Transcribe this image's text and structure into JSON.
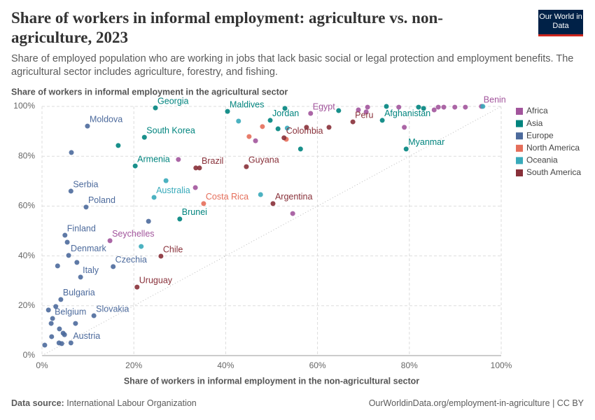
{
  "chart_data": {
    "type": "scatter",
    "title": "Share of workers in informal employment: agriculture vs. non-agriculture, 2023",
    "subtitle": "Share of employed population who are working in jobs that lack basic social or legal protection and employment benefits. The agricultural sector includes agriculture, forestry, and fishing.",
    "logo": "Our World in Data",
    "y_label": "Share of workers in informal employment in the agricultural sector",
    "x_label": "Share of workers in informal employment in the non-agricultural sector",
    "source_label": "Data source:",
    "source": "International Labour Organization",
    "url": "OurWorldinData.org/employment-in-agriculture | CC BY",
    "xlim": [
      0,
      100
    ],
    "ylim": [
      0,
      100
    ],
    "xticks": [
      {
        "value": 0,
        "label": "0%"
      },
      {
        "value": 20,
        "label": "20%"
      },
      {
        "value": 40,
        "label": "40%"
      },
      {
        "value": 60,
        "label": "60%"
      },
      {
        "value": 80,
        "label": "80%"
      },
      {
        "value": 100,
        "label": "100%"
      }
    ],
    "yticks": [
      {
        "value": 0,
        "label": "0%"
      },
      {
        "value": 20,
        "label": "20%"
      },
      {
        "value": 40,
        "label": "40%"
      },
      {
        "value": 60,
        "label": "60%"
      },
      {
        "value": 80,
        "label": "80%"
      },
      {
        "value": 100,
        "label": "100%"
      }
    ],
    "grid": true,
    "legend": "right",
    "series": [
      {
        "name": "Africa",
        "color": "#a2559c",
        "x": [
          58.5,
          95.7,
          14.8,
          29.7,
          33.4,
          54.6,
          78.9,
          46.5,
          68.9,
          70.9,
          77.7,
          85.4,
          87.5,
          89.9,
          92.2,
          70.6,
          86.3
        ],
        "values": [
          97.2,
          100,
          46.1,
          78.7,
          67.4,
          57.0,
          91.6,
          86.2,
          98.6,
          99.7,
          99.7,
          98.6,
          99.7,
          99.7,
          99.7,
          97.8,
          99.7
        ],
        "labels": [
          "Egypt",
          "Benin",
          "Seychelles",
          null,
          null,
          null,
          null,
          null,
          null,
          null,
          null,
          null,
          null,
          null,
          null,
          null,
          null
        ]
      },
      {
        "name": "Asia",
        "color": "#00847e",
        "x": [
          24.7,
          22.3,
          20.3,
          30.0,
          40.4,
          49.7,
          79.3,
          74.1,
          16.6,
          52.9,
          64.6,
          56.3,
          51.4,
          75.0,
          82.0,
          83.1
        ],
        "values": [
          99.4,
          87.6,
          76.1,
          54.8,
          98.0,
          94.4,
          82.9,
          94.4,
          84.3,
          99.2,
          98.3,
          82.9,
          91.0,
          100,
          99.7,
          99.2
        ],
        "labels": [
          "Georgia",
          "South Korea",
          "Armenia",
          "Brunei",
          "Maldives",
          "Jordan",
          "Myanmar",
          "Afghanistan",
          null,
          null,
          null,
          null,
          null,
          null,
          null,
          null
        ]
      },
      {
        "name": "Europe",
        "color": "#4c6a9c",
        "x": [
          9.9,
          6.3,
          9.6,
          5.0,
          5.8,
          8.4,
          15.5,
          4.1,
          11.3,
          2.3,
          6.3,
          6.4,
          23.2,
          3.4,
          7.6,
          5.5,
          1.4,
          3.0,
          2.0,
          3.8,
          4.6,
          2.1,
          3.7,
          0.6,
          4.9,
          4.3,
          7.3
        ],
        "values": [
          92.1,
          66.0,
          59.6,
          48.3,
          40.2,
          31.5,
          35.7,
          22.5,
          16.0,
          14.9,
          5.1,
          81.5,
          53.9,
          36.0,
          37.4,
          45.5,
          18.3,
          19.7,
          12.9,
          10.7,
          9.0,
          7.6,
          5.1,
          4.2,
          8.4,
          4.8,
          12.9
        ],
        "labels": [
          "Moldova",
          "Serbia",
          "Poland",
          "Finland",
          "Denmark",
          "Italy",
          "Czechia",
          "Bulgaria",
          "Slovakia",
          "Belgium",
          "Austria",
          null,
          null,
          null,
          null,
          null,
          null,
          null,
          null,
          null,
          null,
          null,
          null,
          null,
          null,
          null,
          null
        ]
      },
      {
        "name": "North America",
        "color": "#e56e5a",
        "x": [
          35.2,
          45.1,
          48.0,
          53.2
        ],
        "values": [
          61.0,
          87.9,
          91.9,
          86.8
        ],
        "labels": [
          "Costa Rica",
          null,
          null,
          null
        ]
      },
      {
        "name": "Oceania",
        "color": "#38aaba",
        "x": [
          24.4,
          27.0,
          42.8,
          47.6,
          21.6,
          96.0,
          53.4
        ],
        "values": [
          63.5,
          70.2,
          94.1,
          64.6,
          43.8,
          100,
          91.3
        ],
        "labels": [
          "Australia",
          null,
          null,
          null,
          null,
          null,
          null
        ]
      },
      {
        "name": "South America",
        "color": "#883039",
        "x": [
          34.3,
          44.5,
          52.7,
          50.3,
          67.7,
          25.9,
          20.7,
          57.6,
          62.5,
          33.5
        ],
        "values": [
          75.3,
          75.8,
          87.4,
          61.0,
          93.8,
          39.9,
          27.5,
          91.6,
          91.6,
          75.3
        ],
        "labels": [
          "Brazil",
          "Guyana",
          "Colombia",
          "Argentina",
          "Peru",
          "Chile",
          "Uruguay",
          null,
          null,
          null
        ]
      }
    ]
  }
}
